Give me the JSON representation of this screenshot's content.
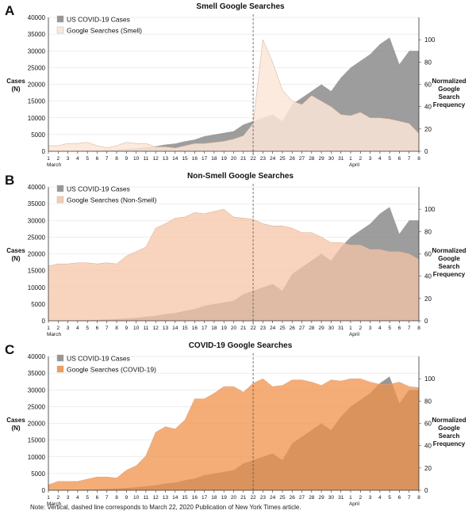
{
  "note": "Note: Vertical, dashed line corresponds to March 22, 2020 Publication of New York Times article.",
  "colors": {
    "cases": "#8c8c8c",
    "grid": "#dddddd",
    "smell": "#fbe6d8",
    "non_smell": "#f6c6aa",
    "covid": "#f0924a"
  },
  "chart_data": [
    {
      "panel_label": "A",
      "type": "area",
      "title": "Smell Google Searches",
      "ylabel": "Cases\n(N)",
      "y2label": "Normalized\nGoogle\nSearch\nFrequency",
      "x_ticks": [
        "1",
        "2",
        "3",
        "4",
        "5",
        "6",
        "7",
        "8",
        "9",
        "10",
        "11",
        "12",
        "13",
        "14",
        "15",
        "16",
        "17",
        "18",
        "19",
        "20",
        "21",
        "22",
        "23",
        "24",
        "25",
        "26",
        "27",
        "28",
        "29",
        "30",
        "31",
        "1",
        "2",
        "3",
        "4",
        "5",
        "6",
        "7",
        "8"
      ],
      "x_month_labels": [
        {
          "index": 0,
          "label": "March"
        },
        {
          "index": 31,
          "label": "April"
        }
      ],
      "ylim": [
        0,
        40000
      ],
      "yticks": [
        "0",
        "5000",
        "10000",
        "15000",
        "20000",
        "25000",
        "30000",
        "35000",
        "40000"
      ],
      "y2lim": [
        0,
        120
      ],
      "y2ticks": [
        "0",
        "20",
        "40",
        "60",
        "80",
        "100"
      ],
      "vline_index": 21,
      "legend": "top-left",
      "series": [
        {
          "name": "US COVID-19 Cases",
          "axis": "left",
          "color": "#8c8c8c",
          "opacity": 0.85,
          "values": [
            50,
            70,
            100,
            150,
            200,
            300,
            400,
            500,
            700,
            900,
            1200,
            1500,
            2000,
            2300,
            3000,
            3500,
            4500,
            5000,
            5500,
            6000,
            8000,
            9000,
            10000,
            11000,
            9000,
            14000,
            16000,
            18000,
            20000,
            18000,
            22000,
            25000,
            27000,
            29000,
            32000,
            34000,
            26000,
            30000,
            30000
          ]
        },
        {
          "name": "Google Searches (Smell)",
          "axis": "right",
          "color": "#fbe6d8",
          "opacity": 0.85,
          "values": [
            5,
            5,
            7,
            7,
            8,
            5,
            3,
            5,
            8,
            7,
            7,
            4,
            4,
            3,
            5,
            7,
            7,
            8,
            9,
            11,
            14,
            25,
            100,
            80,
            55,
            45,
            42,
            50,
            45,
            40,
            33,
            32,
            35,
            30,
            30,
            29,
            27,
            25,
            16
          ]
        }
      ]
    },
    {
      "panel_label": "B",
      "type": "area",
      "title": "Non-Smell Google Searches",
      "ylabel": "Cases\n(N)",
      "y2label": "Normalized\nGoogle\nSearch\nFrequency",
      "x_ticks": [
        "1",
        "2",
        "3",
        "4",
        "5",
        "6",
        "7",
        "8",
        "9",
        "10",
        "11",
        "12",
        "13",
        "14",
        "15",
        "16",
        "17",
        "18",
        "19",
        "20",
        "21",
        "22",
        "23",
        "24",
        "25",
        "26",
        "27",
        "28",
        "29",
        "30",
        "31",
        "1",
        "2",
        "3",
        "4",
        "5",
        "6",
        "7",
        "8"
      ],
      "x_month_labels": [
        {
          "index": 0,
          "label": "March"
        },
        {
          "index": 31,
          "label": "April"
        }
      ],
      "ylim": [
        0,
        40000
      ],
      "yticks": [
        "0",
        "5000",
        "10000",
        "15000",
        "20000",
        "25000",
        "30000",
        "35000",
        "40000"
      ],
      "y2lim": [
        0,
        120
      ],
      "y2ticks": [
        "0",
        "20",
        "40",
        "60",
        "80",
        "100"
      ],
      "vline_index": 21,
      "legend": "top-left",
      "series": [
        {
          "name": "US COVID-19 Cases",
          "axis": "left",
          "color": "#8c8c8c",
          "opacity": 0.85,
          "values": [
            50,
            70,
            100,
            150,
            200,
            300,
            400,
            500,
            700,
            900,
            1200,
            1500,
            2000,
            2300,
            3000,
            3500,
            4500,
            5000,
            5500,
            6000,
            8000,
            9000,
            10000,
            11000,
            9000,
            14000,
            16000,
            18000,
            20000,
            18000,
            22000,
            25000,
            27000,
            29000,
            32000,
            34000,
            26000,
            30000,
            30000
          ]
        },
        {
          "name": "Google Searches (Non-Smell)",
          "axis": "right",
          "color": "#f6c6aa",
          "opacity": 0.75,
          "values": [
            49,
            51,
            51,
            52,
            52,
            51,
            52,
            51,
            58,
            62,
            66,
            83,
            87,
            92,
            93,
            97,
            96,
            98,
            100,
            93,
            92,
            91,
            87,
            85,
            85,
            83,
            79,
            79,
            75,
            70,
            70,
            68,
            68,
            64,
            64,
            62,
            62,
            60,
            55
          ]
        }
      ]
    },
    {
      "panel_label": "C",
      "type": "area",
      "title": "COVID-19 Google Searches",
      "ylabel": "Cases\n(N)",
      "y2label": "Normalized\nGoogle\nSearch\nFrequency",
      "x_ticks": [
        "1",
        "2",
        "3",
        "4",
        "5",
        "6",
        "7",
        "8",
        "9",
        "10",
        "11",
        "12",
        "13",
        "14",
        "15",
        "16",
        "17",
        "18",
        "19",
        "20",
        "21",
        "22",
        "23",
        "24",
        "25",
        "26",
        "27",
        "28",
        "29",
        "30",
        "31",
        "1",
        "2",
        "3",
        "4",
        "5",
        "6",
        "7",
        "8"
      ],
      "x_month_labels": [
        {
          "index": 0,
          "label": "March"
        },
        {
          "index": 31,
          "label": "April"
        }
      ],
      "ylim": [
        0,
        40000
      ],
      "yticks": [
        "0",
        "5000",
        "10000",
        "15000",
        "20000",
        "25000",
        "30000",
        "35000",
        "40000"
      ],
      "y2lim": [
        0,
        120
      ],
      "y2ticks": [
        "0",
        "20",
        "40",
        "60",
        "80",
        "100"
      ],
      "vline_index": 21,
      "legend": "top-left",
      "series": [
        {
          "name": "US COVID-19 Cases",
          "axis": "left",
          "color": "#8c8c8c",
          "opacity": 0.9,
          "values": [
            50,
            70,
            100,
            150,
            200,
            300,
            400,
            500,
            700,
            900,
            1200,
            1500,
            2000,
            2300,
            3000,
            3500,
            4500,
            5000,
            5500,
            6000,
            8000,
            9000,
            10000,
            11000,
            9000,
            14000,
            16000,
            18000,
            20000,
            18000,
            22000,
            25000,
            27000,
            29000,
            32000,
            34000,
            26000,
            30000,
            30000
          ]
        },
        {
          "name": "Google Searches (COVID-19)",
          "axis": "right",
          "color": "#f0924a",
          "opacity": 0.75,
          "values": [
            5,
            8,
            8,
            8,
            10,
            12,
            12,
            11,
            18,
            22,
            31,
            52,
            57,
            55,
            63,
            82,
            82,
            87,
            93,
            93,
            88,
            96,
            100,
            93,
            94,
            99,
            99,
            97,
            94,
            99,
            98,
            100,
            100,
            97,
            95,
            95,
            97,
            93,
            92
          ]
        }
      ]
    }
  ]
}
